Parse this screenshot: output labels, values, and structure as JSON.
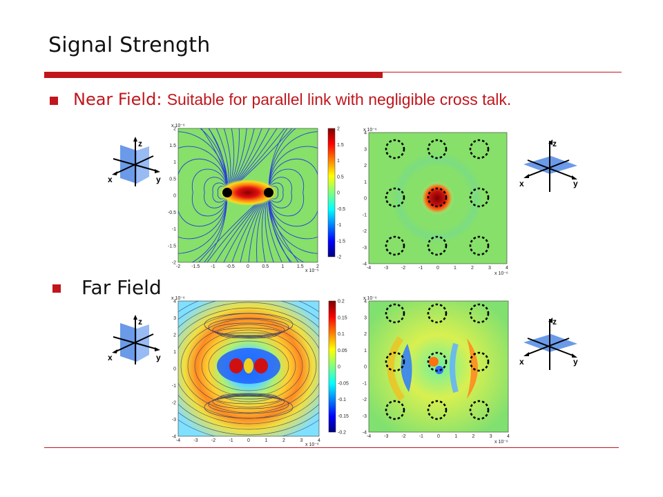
{
  "slide": {
    "title": "Signal Strength"
  },
  "bullets": {
    "near": {
      "label": "Near Field:",
      "description": "Suitable for parallel link with negligible cross talk."
    },
    "far": {
      "label": "Far Field"
    }
  },
  "axes_icon": {
    "x": "x",
    "y": "y",
    "z": "z"
  },
  "plots": {
    "near_left": {
      "x_ticks": [
        "-2",
        "-1.5",
        "-1",
        "-0.5",
        "0",
        "0.5",
        "1",
        "1.5",
        "2"
      ],
      "y_ticks": [
        "2",
        "1.5",
        "1",
        "0.5",
        "0",
        "-0.5",
        "-1",
        "-1.5",
        "-2"
      ],
      "x_exp": "x 10⁻⁶",
      "y_exp": "x 10⁻⁶",
      "colorbar_ticks": [
        "2",
        "1.5",
        "1",
        "0.5",
        "0",
        "-0.5",
        "-1",
        "-1.5",
        "-2"
      ]
    },
    "near_right": {
      "x_ticks": [
        "-4",
        "-3",
        "-2",
        "-1",
        "0",
        "1",
        "2",
        "3",
        "4"
      ],
      "y_ticks": [
        "4",
        "3",
        "2",
        "1",
        "0",
        "-1",
        "-2",
        "-3",
        "-4"
      ],
      "x_exp": "x 10⁻⁶",
      "y_exp": "x 10⁻⁶"
    },
    "far_left": {
      "x_ticks": [
        "-4",
        "-3",
        "-2",
        "-1",
        "0",
        "1",
        "2",
        "3",
        "4"
      ],
      "y_ticks": [
        "4",
        "3",
        "2",
        "1",
        "0",
        "-1",
        "-2",
        "-3",
        "-4"
      ],
      "x_exp": "x 10⁻⁶",
      "y_exp": "x 10⁻⁶",
      "colorbar_ticks": [
        "0.2",
        "0.15",
        "0.1",
        "0.05",
        "0",
        "-0.05",
        "-0.1",
        "-0.15",
        "-0.2"
      ]
    },
    "far_right": {
      "x_ticks": [
        "-4",
        "-3",
        "-2",
        "-1",
        "0",
        "1",
        "2",
        "3",
        "4"
      ],
      "y_ticks": [
        "4",
        "3",
        "2",
        "1",
        "0",
        "-1",
        "-2",
        "-3",
        "-4"
      ],
      "x_exp": "x 10⁻⁶",
      "y_exp": "x 10⁻⁶"
    }
  },
  "colors": {
    "accent": "#c0161c"
  }
}
